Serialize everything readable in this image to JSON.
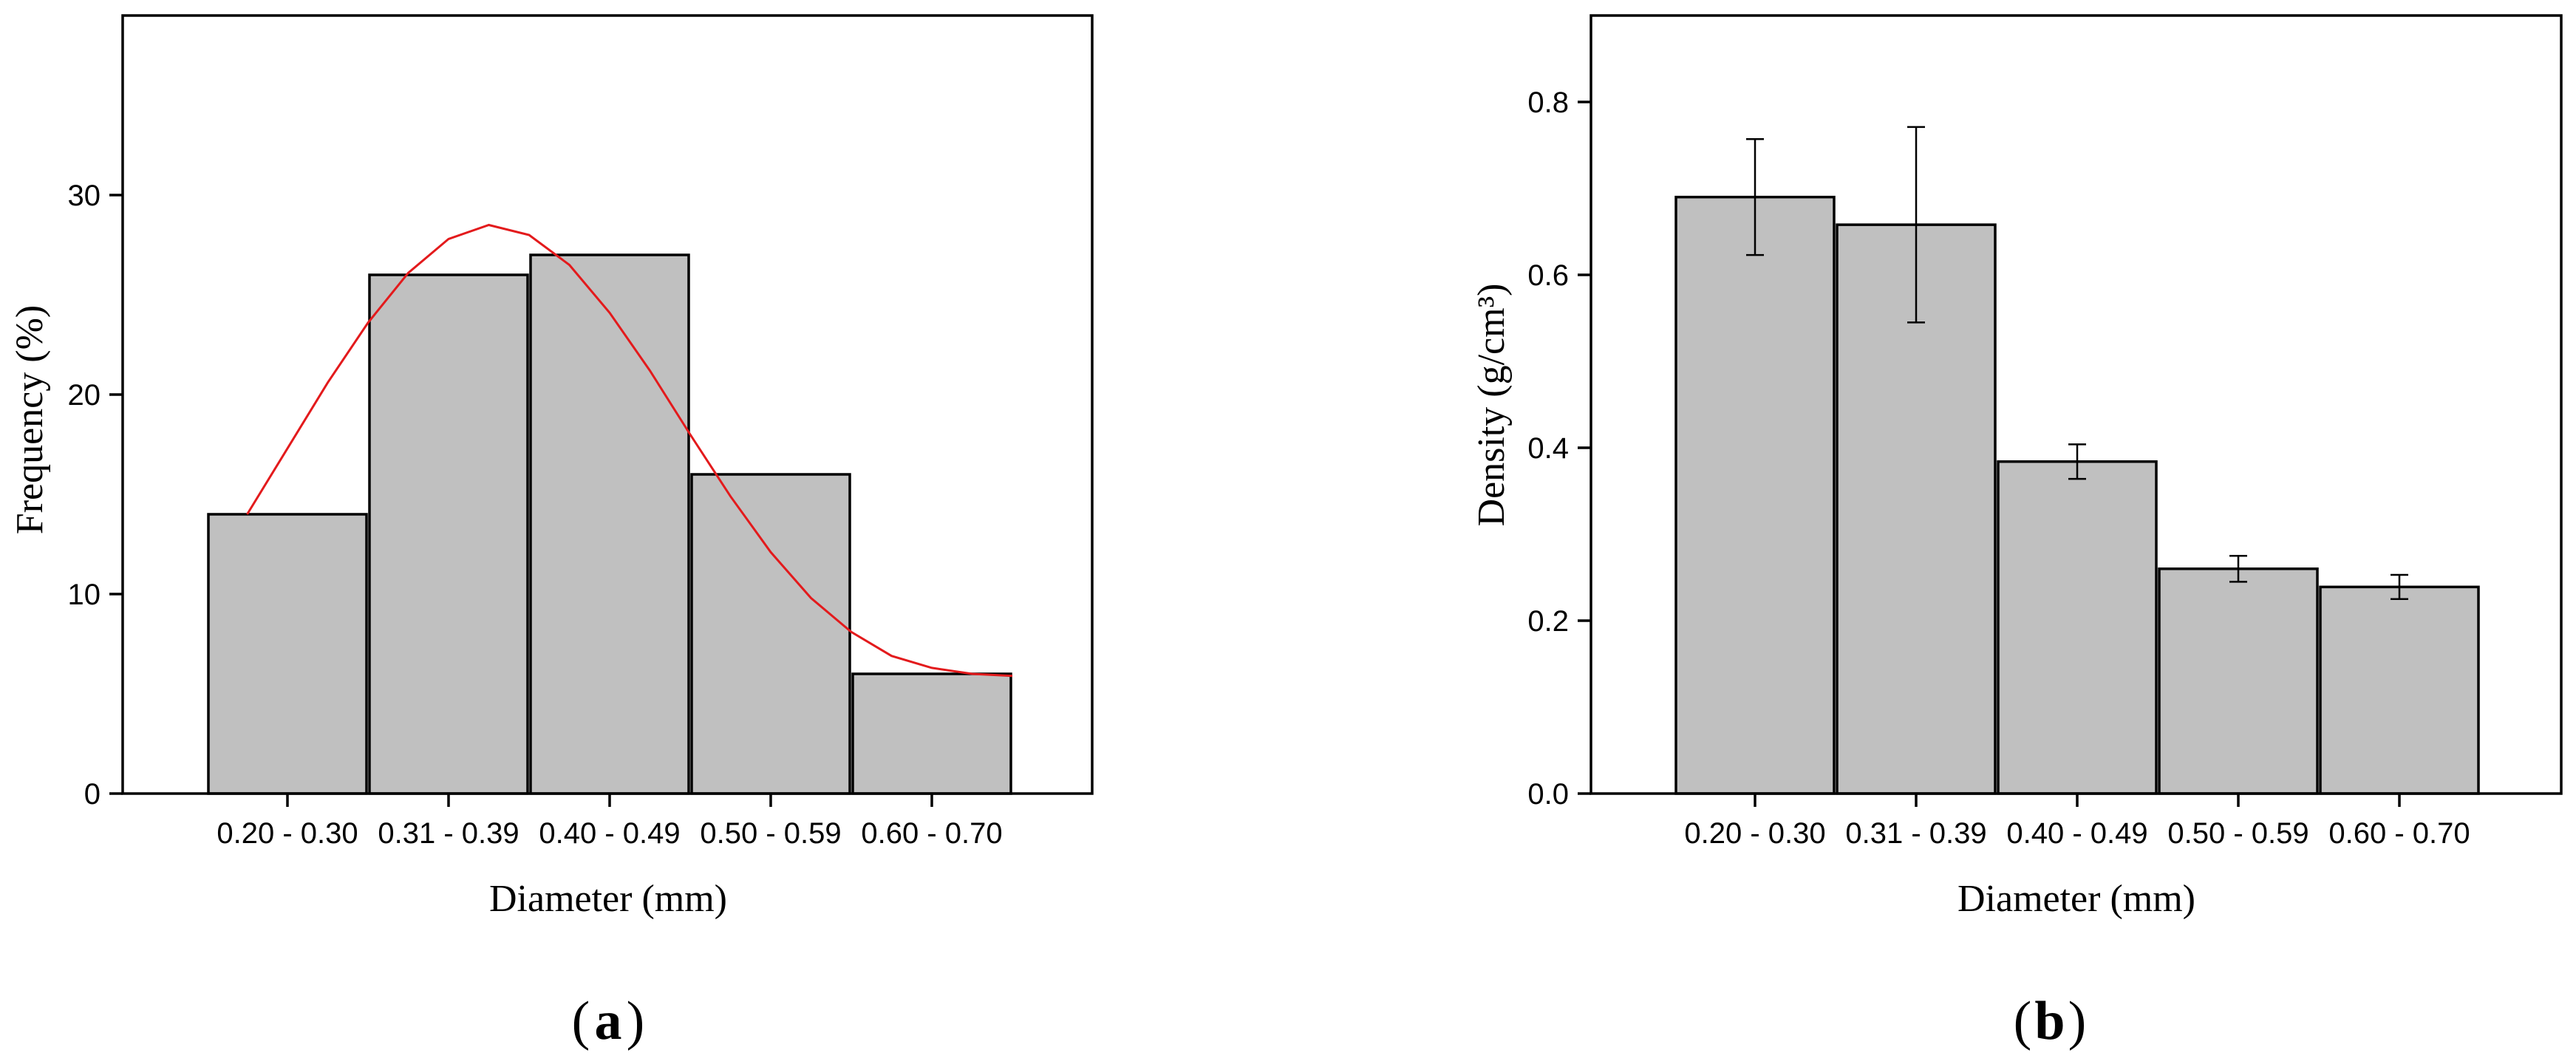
{
  "panels": [
    {
      "label": "a"
    },
    {
      "label": "b"
    }
  ],
  "colors": {
    "bar_fill": "#c0c0c0",
    "bar_stroke": "#000000",
    "curve": "#e31a1c",
    "axis": "#000000"
  },
  "chart_data": [
    {
      "type": "bar",
      "categories": [
        "0.20 - 0.30",
        "0.31 - 0.39",
        "0.40 - 0.49",
        "0.50 - 0.59",
        "0.60 - 0.70"
      ],
      "values": [
        14,
        26,
        27,
        16,
        6
      ],
      "fit_curve": {
        "x": [
          0.25,
          0.75,
          1.0,
          1.25,
          1.5,
          1.75,
          2.0,
          2.25,
          2.5,
          2.75,
          3.0,
          3.25,
          3.5,
          3.75,
          4.0,
          4.25,
          4.5,
          4.75,
          5.0
        ],
        "y": [
          14.0,
          20.6,
          23.6,
          26.1,
          27.8,
          28.5,
          28.0,
          26.5,
          24.1,
          21.2,
          18.0,
          14.9,
          12.1,
          9.8,
          8.1,
          6.9,
          6.3,
          6.0,
          5.9
        ]
      },
      "title": "",
      "xlabel": "Diameter (mm)",
      "ylabel": "Frequency (%)",
      "ylim": [
        0,
        39
      ],
      "yticks": [
        0,
        10,
        20,
        30
      ],
      "grid": false,
      "legend": "none"
    },
    {
      "type": "bar",
      "categories": [
        "0.20 - 0.30",
        "0.31 - 0.39",
        "0.40 - 0.49",
        "0.50 - 0.59",
        "0.60 - 0.70"
      ],
      "values": [
        0.69,
        0.658,
        0.384,
        0.26,
        0.239
      ],
      "errors": [
        0.067,
        0.113,
        0.02,
        0.015,
        0.014
      ],
      "title": "",
      "xlabel": "Diameter (mm)",
      "ylabel": "Density (g/cm³)",
      "ylim": [
        0,
        0.9
      ],
      "yticks": [
        "0.0",
        "0.2",
        "0.4",
        "0.6",
        "0.8"
      ],
      "grid": false,
      "legend": "none"
    }
  ]
}
